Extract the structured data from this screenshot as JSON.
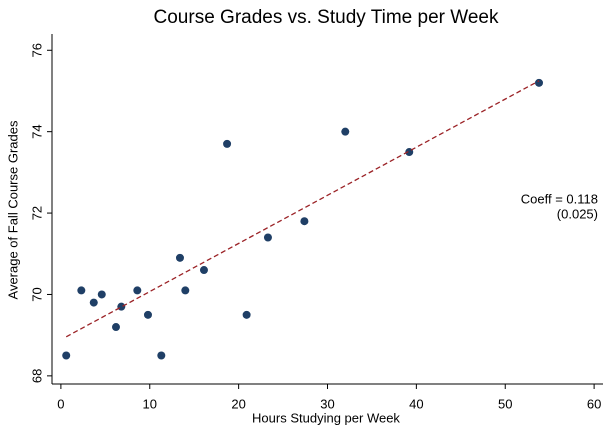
{
  "chart_data": {
    "type": "scatter",
    "title": "Course Grades vs. Study Time per Week",
    "x_label": "Hours Studying per Week",
    "y_label": "Average of Fall Course Grades",
    "points": {
      "color": "#1f3f66",
      "x": [
        0.6,
        2.3,
        3.7,
        4.6,
        6.2,
        6.8,
        8.6,
        9.8,
        11.3,
        13.4,
        14.0,
        16.1,
        18.7,
        20.9,
        23.3,
        27.4,
        32.0,
        39.2,
        53.8
      ],
      "y": [
        68.5,
        70.1,
        69.8,
        70.0,
        69.2,
        69.7,
        70.1,
        69.5,
        68.5,
        70.9,
        70.1,
        70.6,
        73.7,
        69.5,
        71.4,
        71.8,
        74.0,
        73.5,
        75.2
      ]
    },
    "fit": {
      "color": "#9b2226",
      "x": [
        0.6,
        53.8
      ],
      "y": [
        68.96,
        75.25
      ]
    },
    "annotations": [
      "Coeff = 0.118",
      "(0.025)"
    ],
    "xlim": [
      -1,
      61
    ],
    "xticks": [
      0,
      10,
      20,
      30,
      40,
      50,
      60
    ],
    "ylim": [
      67.8,
      76.4
    ],
    "yticks": [
      68,
      70,
      72,
      74,
      76
    ]
  }
}
